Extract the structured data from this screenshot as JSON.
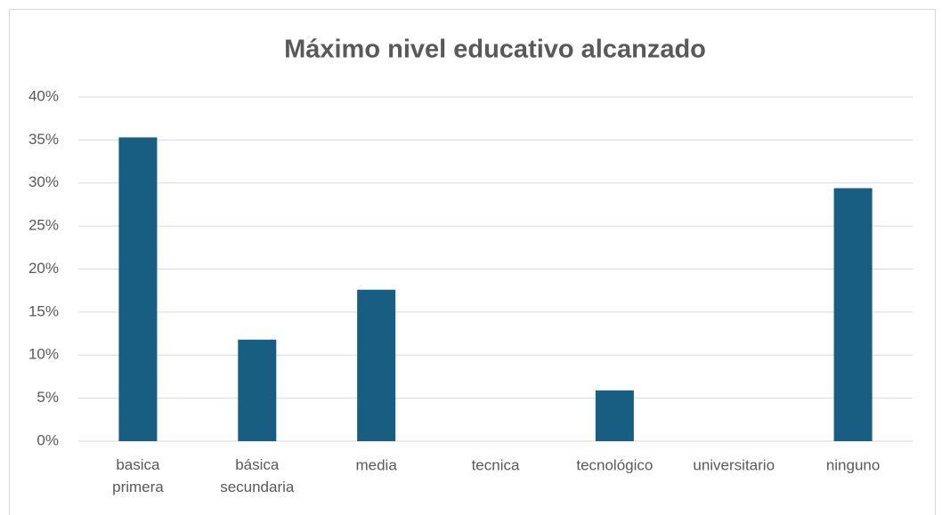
{
  "chart_data": {
    "type": "bar",
    "title": "Máximo nivel educativo alcanzado",
    "categories": [
      "basica primera",
      "básica secundaria",
      "media",
      "tecnica",
      "tecnológico",
      "universitario",
      "ninguno"
    ],
    "values": [
      35.3,
      11.8,
      17.6,
      0,
      5.9,
      0,
      29.4
    ],
    "color": "#175e82",
    "ylim": [
      0,
      40
    ],
    "yticks": [
      {
        "value": 0,
        "label": "0%"
      },
      {
        "value": 5,
        "label": "5%"
      },
      {
        "value": 10,
        "label": "10%"
      },
      {
        "value": 15,
        "label": "15%"
      },
      {
        "value": 20,
        "label": "20%"
      },
      {
        "value": 25,
        "label": "25%"
      },
      {
        "value": 30,
        "label": "30%"
      },
      {
        "value": 35,
        "label": "35%"
      },
      {
        "value": 40,
        "label": "40%"
      }
    ],
    "grid": true
  }
}
